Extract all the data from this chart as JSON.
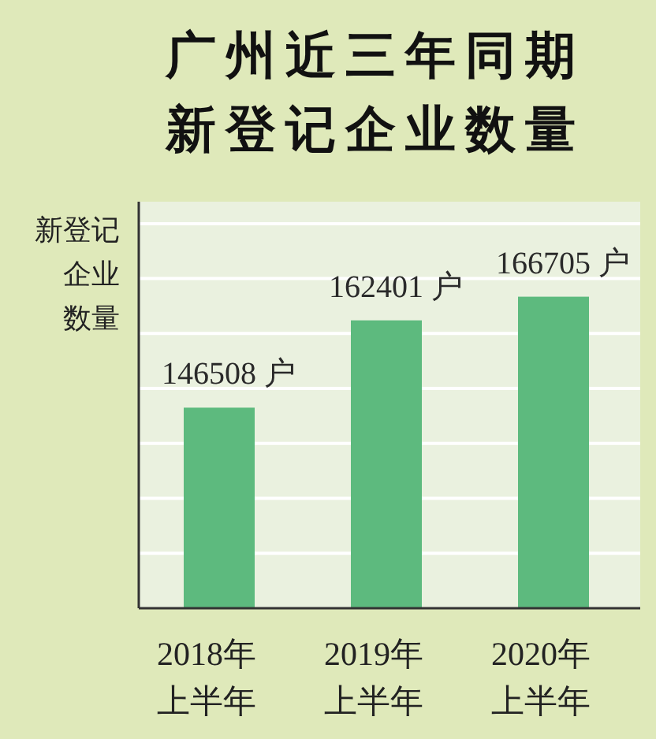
{
  "chart_data": {
    "type": "bar",
    "title": "广州近三年同期新登记企业数量",
    "ylabel": "新登记企业数量",
    "categories": [
      "2018年上半年",
      "2019年上半年",
      "2020年上半年"
    ],
    "values": [
      146508,
      162401,
      166705
    ],
    "value_labels": [
      "146508 户",
      "162401 户",
      "166705 户"
    ],
    "color": "#5dba7e",
    "ylim": [
      110000,
      184000
    ],
    "yticks": [
      {
        "value": 120000,
        "label": null
      },
      {
        "value": 130000,
        "label": null
      },
      {
        "value": 140000,
        "label": null
      },
      {
        "value": 150000,
        "label": null
      },
      {
        "value": 160000,
        "label": null
      },
      {
        "value": 170000,
        "label": null
      },
      {
        "value": 180000,
        "label": null
      }
    ],
    "grid": "y",
    "tick_labels": "x"
  }
}
